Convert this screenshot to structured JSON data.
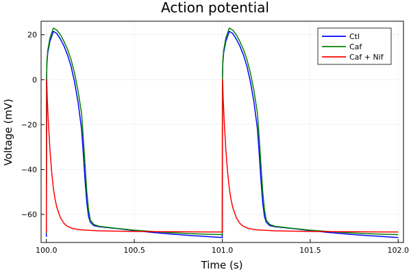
{
  "chart_data": {
    "type": "line",
    "title": "Action potential",
    "xlabel": "Time (s)",
    "ylabel": "Voltage (mV)",
    "xlim": [
      99.97,
      102.03
    ],
    "ylim": [
      -72.5,
      26
    ],
    "x_ticks": [
      100.0,
      100.5,
      101.0,
      101.5,
      102.0
    ],
    "x_tick_labels": [
      "100.0",
      "100.5",
      "101.0",
      "101.5",
      "102.0"
    ],
    "y_ticks": [
      -60,
      -40,
      -20,
      0,
      20
    ],
    "y_tick_labels": [
      "−60",
      "−40",
      "−20",
      "0",
      "20"
    ],
    "grid": true,
    "legend_position": "top-right",
    "series": [
      {
        "name": "Ctl",
        "color": "#0000ff",
        "x": [
          100.0,
          100.001,
          100.003,
          100.008,
          100.02,
          100.04,
          100.06,
          100.08,
          100.1,
          100.12,
          100.14,
          100.16,
          100.18,
          100.2,
          100.21,
          100.22,
          100.23,
          100.24,
          100.25,
          100.27,
          100.3,
          100.4,
          100.5,
          100.6,
          100.7,
          100.8,
          100.9,
          101.0,
          101.0,
          101.001,
          101.003,
          101.008,
          101.02,
          101.04,
          101.06,
          101.08,
          101.1,
          101.12,
          101.14,
          101.16,
          101.18,
          101.2,
          101.21,
          101.22,
          101.23,
          101.24,
          101.25,
          101.27,
          101.3,
          101.4,
          101.5,
          101.6,
          101.7,
          101.8,
          101.9,
          102.0
        ],
        "y": [
          -70,
          0,
          7,
          12,
          17,
          21.5,
          20.5,
          18,
          15,
          11,
          6,
          -1,
          -10,
          -22,
          -33,
          -45,
          -55,
          -61,
          -63.5,
          -65,
          -65.5,
          -66.3,
          -67.2,
          -68,
          -68.7,
          -69.3,
          -69.8,
          -70.3,
          -70.3,
          0,
          7,
          12,
          17,
          21.5,
          20.5,
          18,
          15,
          11,
          6,
          -1,
          -10,
          -22,
          -33,
          -45,
          -55,
          -61,
          -63.5,
          -65,
          -65.5,
          -66.3,
          -67.2,
          -68,
          -68.7,
          -69.3,
          -69.8,
          -70.3
        ]
      },
      {
        "name": "Caf",
        "color": "#008000",
        "x": [
          100.0,
          100.001,
          100.003,
          100.008,
          100.02,
          100.04,
          100.06,
          100.08,
          100.1,
          100.12,
          100.14,
          100.16,
          100.18,
          100.2,
          100.21,
          100.22,
          100.23,
          100.24,
          100.25,
          100.27,
          100.3,
          100.4,
          100.5,
          100.6,
          100.7,
          100.8,
          100.9,
          101.0,
          101.0,
          101.001,
          101.003,
          101.008,
          101.02,
          101.04,
          101.06,
          101.08,
          101.1,
          101.12,
          101.14,
          101.16,
          101.18,
          101.2,
          101.21,
          101.22,
          101.23,
          101.24,
          101.25,
          101.27,
          101.3,
          101.4,
          101.5,
          101.6,
          101.7,
          101.8,
          101.9,
          102.0
        ],
        "y": [
          -68.5,
          0,
          8,
          13,
          18.5,
          23,
          22,
          20,
          17,
          13.5,
          9,
          3,
          -5,
          -15,
          -26,
          -38,
          -50,
          -58,
          -62.5,
          -64.5,
          -65.3,
          -66.2,
          -67,
          -67.6,
          -68.1,
          -68.5,
          -68.8,
          -69,
          -69,
          0,
          8,
          13,
          18.5,
          23,
          22,
          20,
          17,
          13.5,
          9,
          3,
          -5,
          -15,
          -26,
          -38,
          -50,
          -58,
          -62.5,
          -64.5,
          -65.3,
          -66.2,
          -67,
          -67.6,
          -68.1,
          -68.5,
          -68.8,
          -69
        ]
      },
      {
        "name": "Caf + Nif",
        "color": "#ff0000",
        "x": [
          100.0,
          100.002,
          100.005,
          100.01,
          100.02,
          100.03,
          100.04,
          100.05,
          100.06,
          100.08,
          100.1,
          100.12,
          100.15,
          100.2,
          100.3,
          100.5,
          100.7,
          100.9,
          101.0,
          101.0,
          101.002,
          101.005,
          101.01,
          101.02,
          101.03,
          101.04,
          101.05,
          101.06,
          101.08,
          101.1,
          101.12,
          101.15,
          101.2,
          101.3,
          101.5,
          101.7,
          101.9,
          102.0
        ],
        "y": [
          -68,
          0,
          -8,
          -17,
          -31,
          -41,
          -48.5,
          -53.5,
          -57,
          -61.5,
          -64,
          -65.3,
          -66.3,
          -66.9,
          -67.3,
          -67.6,
          -67.7,
          -67.8,
          -67.8,
          -68,
          0,
          -8,
          -17,
          -31,
          -41,
          -48.5,
          -53.5,
          -57,
          -61.5,
          -64,
          -65.3,
          -66.3,
          -66.9,
          -67.3,
          -67.6,
          -67.7,
          -67.8,
          -67.8
        ]
      }
    ]
  }
}
